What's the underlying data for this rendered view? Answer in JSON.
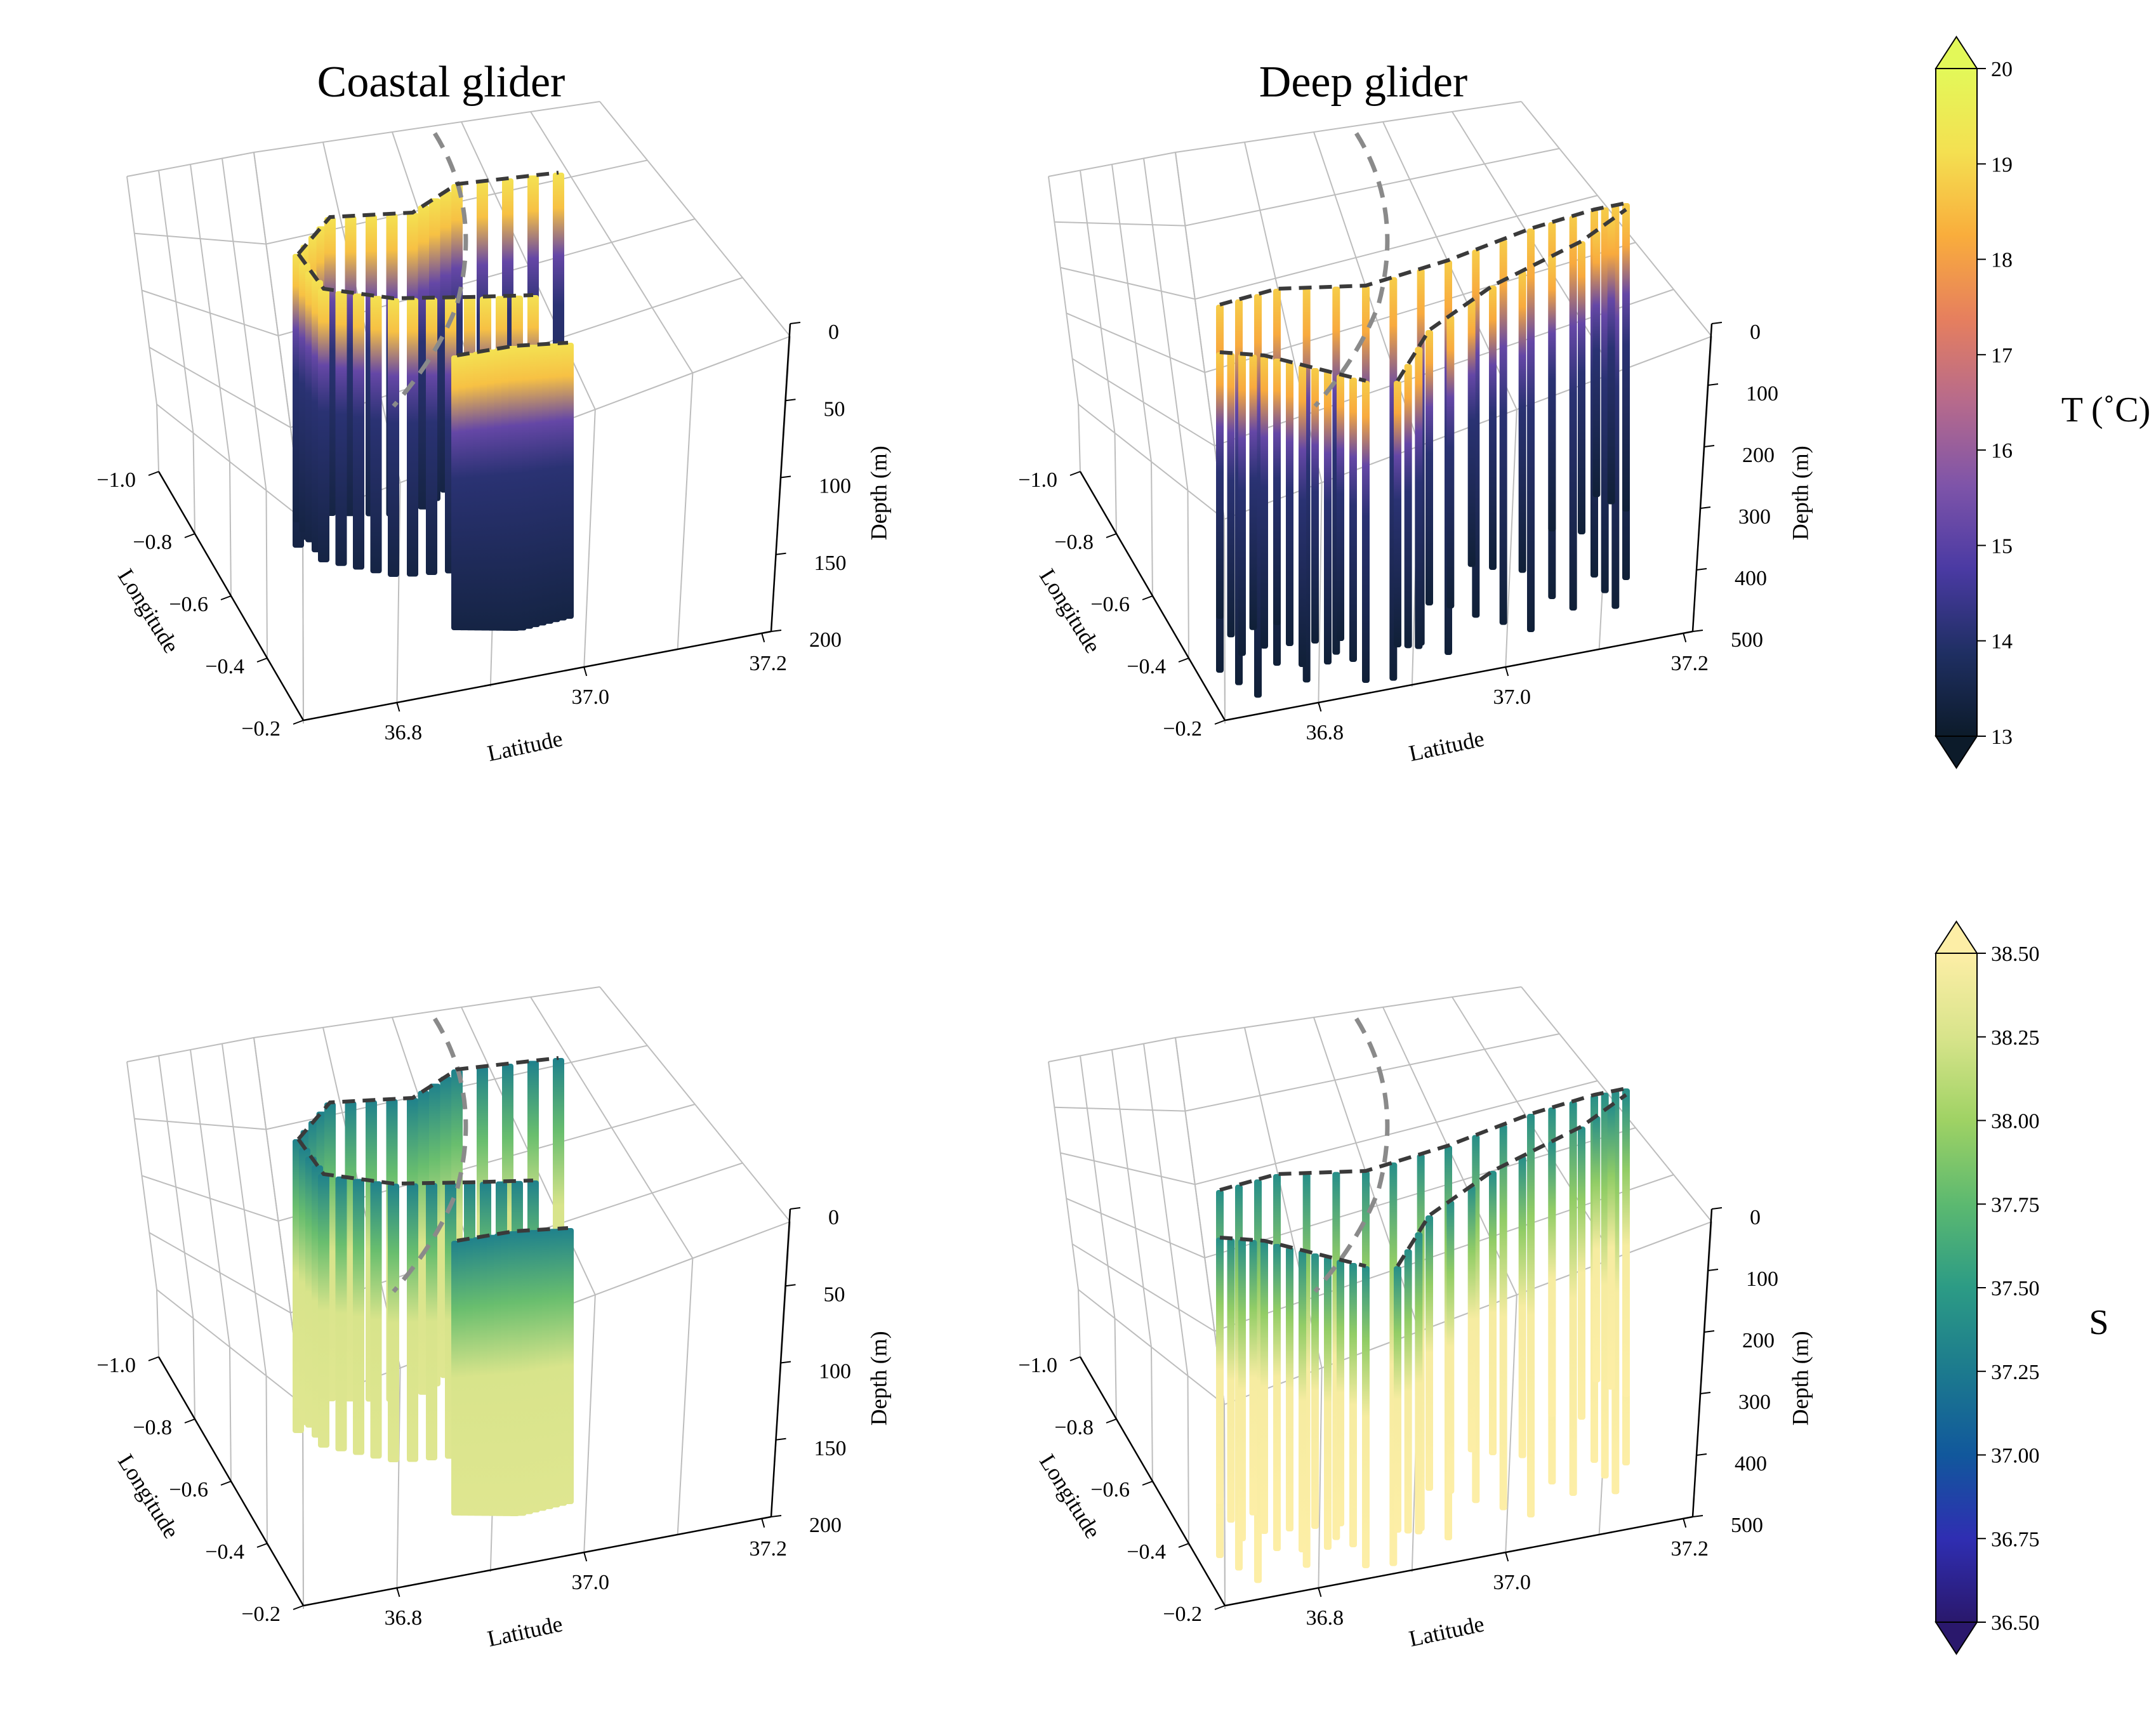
{
  "figure": {
    "panel_titles": [
      "Coastal glider",
      "Deep glider"
    ],
    "colorbars": [
      {
        "label": "T (˚C)",
        "colormap": "thermal",
        "range": [
          13,
          20
        ],
        "ticks": [
          "13",
          "14",
          "15",
          "16",
          "17",
          "18",
          "19",
          "20"
        ],
        "colors": [
          "#0c1b2a",
          "#1f2f63",
          "#4a3aa3",
          "#7e54a9",
          "#b66a8c",
          "#e67f5e",
          "#f9ad3c",
          "#f4e051",
          "#e3f859"
        ]
      },
      {
        "label": "S",
        "colormap": "haline",
        "range": [
          36.5,
          38.5
        ],
        "ticks": [
          "36.50",
          "36.75",
          "37.00",
          "37.25",
          "37.50",
          "37.75",
          "38.00",
          "38.25",
          "38.50"
        ],
        "colors": [
          "#2a186c",
          "#2f2eb2",
          "#11589c",
          "#1c7a8e",
          "#2c9b85",
          "#5cb970",
          "#9fd264",
          "#d8e48b",
          "#fdeea6"
        ]
      }
    ]
  },
  "chart_data": [
    {
      "type": "scatter",
      "title": "Coastal glider",
      "variable": "T (˚C)",
      "xlabel": "Latitude",
      "ylabel": "Longitude",
      "zlabel": "Depth (m)",
      "x_ticks": [
        "36.8",
        "37.0",
        "37.2"
      ],
      "y_ticks": [
        "−1.0",
        "−0.8",
        "−0.6",
        "−0.4",
        "−0.2"
      ],
      "z_ticks": [
        "0",
        "50",
        "100",
        "150",
        "200"
      ],
      "zlim": [
        0,
        200
      ],
      "profiles": {
        "count": 45,
        "max_depth": 200,
        "surface_value": 19.2,
        "deep_value": 13.4
      }
    },
    {
      "type": "scatter",
      "title": "Deep glider",
      "variable": "T (˚C)",
      "xlabel": "Latitude",
      "ylabel": "Longitude",
      "zlabel": "Depth (m)",
      "x_ticks": [
        "36.8",
        "37.0",
        "37.2"
      ],
      "y_ticks": [
        "−1.0",
        "−0.8",
        "−0.6",
        "−0.4",
        "−0.2"
      ],
      "z_ticks": [
        "0",
        "100",
        "200",
        "300",
        "400",
        "500"
      ],
      "zlim": [
        0,
        500
      ],
      "profiles": {
        "count": 40,
        "max_depth": 500,
        "surface_value": 18.8,
        "deep_value": 13.2
      }
    },
    {
      "type": "scatter",
      "title": "",
      "variable": "S",
      "xlabel": "Latitude",
      "ylabel": "Longitude",
      "zlabel": "Depth (m)",
      "x_ticks": [
        "36.8",
        "37.0",
        "37.2"
      ],
      "y_ticks": [
        "−1.0",
        "−0.8",
        "−0.6",
        "−0.4",
        "−0.2"
      ],
      "z_ticks": [
        "0",
        "50",
        "100",
        "150",
        "200"
      ],
      "zlim": [
        0,
        200
      ],
      "profiles": {
        "count": 45,
        "max_depth": 200,
        "surface_value": 37.3,
        "deep_value": 38.3
      }
    },
    {
      "type": "scatter",
      "title": "",
      "variable": "S",
      "xlabel": "Latitude",
      "ylabel": "Longitude",
      "zlabel": "Depth (m)",
      "x_ticks": [
        "36.8",
        "37.0",
        "37.2"
      ],
      "y_ticks": [
        "−1.0",
        "−0.8",
        "−0.6",
        "−0.4",
        "−0.2"
      ],
      "z_ticks": [
        "0",
        "100",
        "200",
        "300",
        "400",
        "500"
      ],
      "zlim": [
        0,
        500
      ],
      "profiles": {
        "count": 40,
        "max_depth": 500,
        "surface_value": 37.4,
        "deep_value": 38.5
      }
    }
  ]
}
